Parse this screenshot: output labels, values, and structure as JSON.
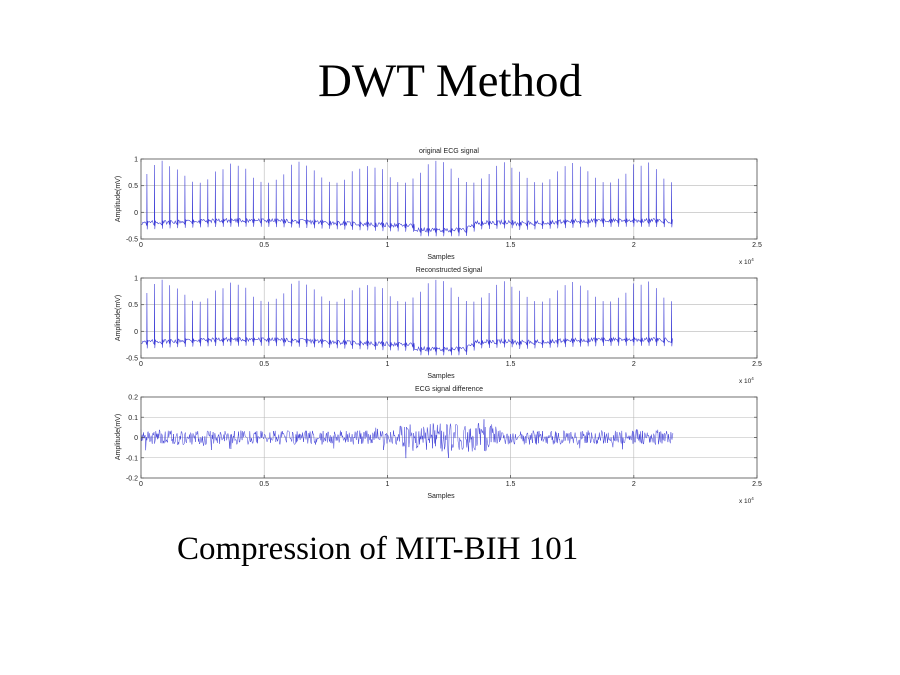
{
  "slide": {
    "title": "DWT Method",
    "caption": "Compression of MIT-BIH 101"
  },
  "colors": {
    "signal": "#3b3bd6",
    "grid": "#b8b8b8",
    "axis": "#555555",
    "text": "#222222"
  },
  "chart_data": [
    {
      "type": "line",
      "title": "original ECG signal",
      "xlabel": "Samples",
      "ylabel": "Amplitude(mV)",
      "x_exponent_label": "x 10^4",
      "xlim": [
        0,
        2.5
      ],
      "ylim": [
        -0.5,
        1
      ],
      "xticks": [
        "0",
        "0.5",
        "1",
        "1.5",
        "2",
        "2.5"
      ],
      "yticks": [
        "-0.5",
        "0",
        "0.5",
        "1"
      ],
      "ytick_values": [
        -0.5,
        0,
        0.5,
        1
      ],
      "grid": true,
      "signal_length_x1e4": 2.16,
      "baseline_mV": -0.2,
      "r_peak_range_mV": [
        0.55,
        0.98
      ],
      "approx_beats": 70
    },
    {
      "type": "line",
      "title": "Reconstructed Signal",
      "xlabel": "Samples",
      "ylabel": "Amplitude(mV)",
      "x_exponent_label": "x 10^4",
      "xlim": [
        0,
        2.5
      ],
      "ylim": [
        -0.5,
        1
      ],
      "xticks": [
        "0",
        "0.5",
        "1",
        "1.5",
        "2",
        "2.5"
      ],
      "yticks": [
        "-0.5",
        "0",
        "0.5",
        "1"
      ],
      "ytick_values": [
        -0.5,
        0,
        0.5,
        1
      ],
      "grid": true,
      "signal_length_x1e4": 2.16,
      "baseline_mV": -0.2,
      "r_peak_range_mV": [
        0.55,
        0.98
      ],
      "approx_beats": 70
    },
    {
      "type": "line",
      "title": "ECG signal difference",
      "xlabel": "Samples",
      "ylabel": "Amplitude(mV)",
      "x_exponent_label": "x 10^4",
      "xlim": [
        0,
        2.5
      ],
      "ylim": [
        -0.2,
        0.2
      ],
      "xticks": [
        "0",
        "0.5",
        "1",
        "1.5",
        "2",
        "2.5"
      ],
      "yticks": [
        "-0.2",
        "-0.1",
        "0",
        "0.1",
        "0.2"
      ],
      "ytick_values": [
        -0.2,
        -0.1,
        0,
        0.1,
        0.2
      ],
      "grid": true,
      "signal_length_x1e4": 2.16,
      "noise_range_mV": [
        -0.11,
        0.09
      ]
    }
  ]
}
